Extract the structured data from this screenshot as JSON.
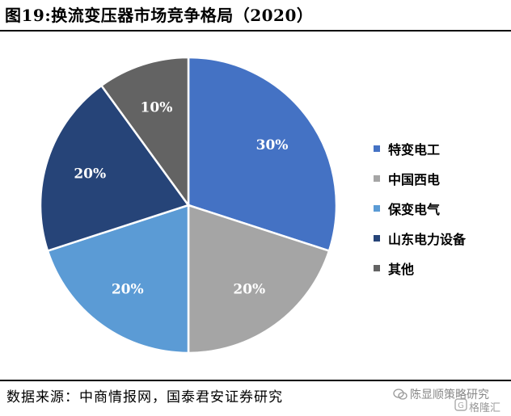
{
  "figure": {
    "title": "图19:换流变压器市场竞争格局（2020）",
    "source": "数据来源：中商情报网，国泰君安证券研究"
  },
  "watermark": {
    "primary": "陈显顺策略研究",
    "secondary": "格隆汇",
    "icon": "wechat-icon"
  },
  "chart_data": {
    "type": "pie",
    "title": "",
    "legend_position": "right",
    "slices": [
      {
        "label": "特变电工",
        "value": 30,
        "display": "30%",
        "color": "#4472C4"
      },
      {
        "label": "中国西电",
        "value": 20,
        "display": "20%",
        "color": "#A5A5A5"
      },
      {
        "label": "保变电气",
        "value": 20,
        "display": "20%",
        "color": "#5B9BD5"
      },
      {
        "label": "山东电力设备",
        "value": 20,
        "display": "20%",
        "color": "#264478"
      },
      {
        "label": "其他",
        "value": 10,
        "display": "10%",
        "color": "#636363"
      }
    ]
  }
}
